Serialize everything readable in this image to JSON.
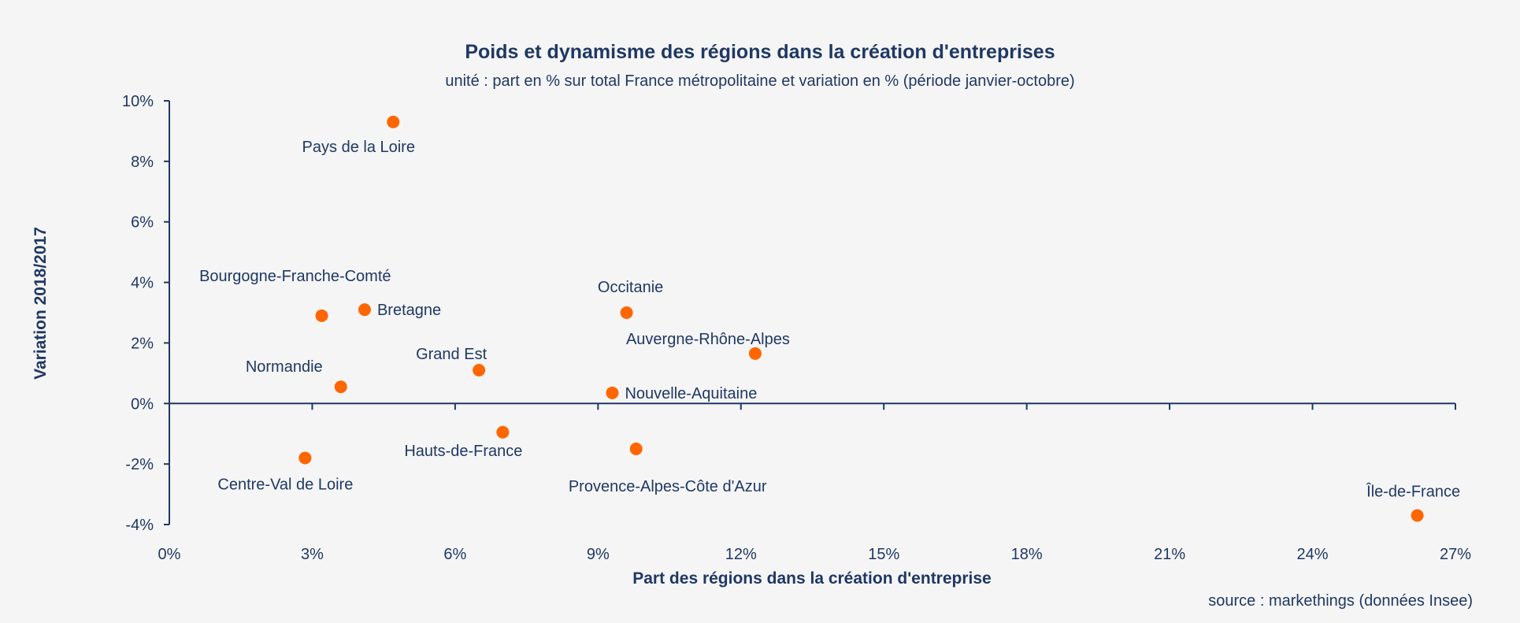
{
  "chart_data": {
    "type": "scatter",
    "title": "Poids et dynamisme des régions dans la création d'entreprises",
    "subtitle": "unité : part en % sur total France métropolitaine et variation en % (période janvier-octobre)",
    "xlabel": "Part des régions dans la création d'entreprise",
    "ylabel": "Variation 2018/2017",
    "source": "source : markethings (données Insee)",
    "xlim": [
      0,
      27
    ],
    "ylim": [
      -4,
      10
    ],
    "x_ticks": [
      "0%",
      "3%",
      "6%",
      "9%",
      "12%",
      "15%",
      "18%",
      "21%",
      "24%",
      "27%"
    ],
    "y_ticks": [
      "10%",
      "8%",
      "6%",
      "4%",
      "2%",
      "0%",
      "-2%",
      "-4%"
    ],
    "x_tick_values": [
      0,
      3,
      6,
      9,
      12,
      15,
      18,
      21,
      24,
      27
    ],
    "y_tick_values": [
      10,
      8,
      6,
      4,
      2,
      0,
      -2,
      -4
    ],
    "marker_color": "#ff6600",
    "axis_color": "#1f3864",
    "grid": false,
    "points": [
      {
        "label": "Pays de la Loire",
        "x": 4.7,
        "y": 9.3,
        "label_pos": "below-left"
      },
      {
        "label": "Bourgogne-Franche-Comté",
        "x": 3.2,
        "y": 2.9,
        "label_pos": "above-left"
      },
      {
        "label": "Bretagne",
        "x": 4.1,
        "y": 3.1,
        "label_pos": "right"
      },
      {
        "label": "Occitanie",
        "x": 9.6,
        "y": 3.0,
        "label_pos": "above"
      },
      {
        "label": "Auvergne-Rhône-Alpes",
        "x": 12.3,
        "y": 1.65,
        "label_pos": "above"
      },
      {
        "label": "Grand Est",
        "x": 6.5,
        "y": 1.1,
        "label_pos": "above-left"
      },
      {
        "label": "Normandie",
        "x": 3.6,
        "y": 0.55,
        "label_pos": "above-left"
      },
      {
        "label": "Nouvelle-Aquitaine",
        "x": 9.3,
        "y": 0.35,
        "label_pos": "right"
      },
      {
        "label": "Hauts-de-France",
        "x": 7.0,
        "y": -0.95,
        "label_pos": "below-left"
      },
      {
        "label": "Provence-Alpes-Côte d'Azur",
        "x": 9.8,
        "y": -1.5,
        "label_pos": "below"
      },
      {
        "label": "Centre-Val de Loire",
        "x": 2.85,
        "y": -1.8,
        "label_pos": "below-left"
      },
      {
        "label": "Île-de-France",
        "x": 26.2,
        "y": -3.7,
        "label_pos": "above"
      }
    ]
  }
}
